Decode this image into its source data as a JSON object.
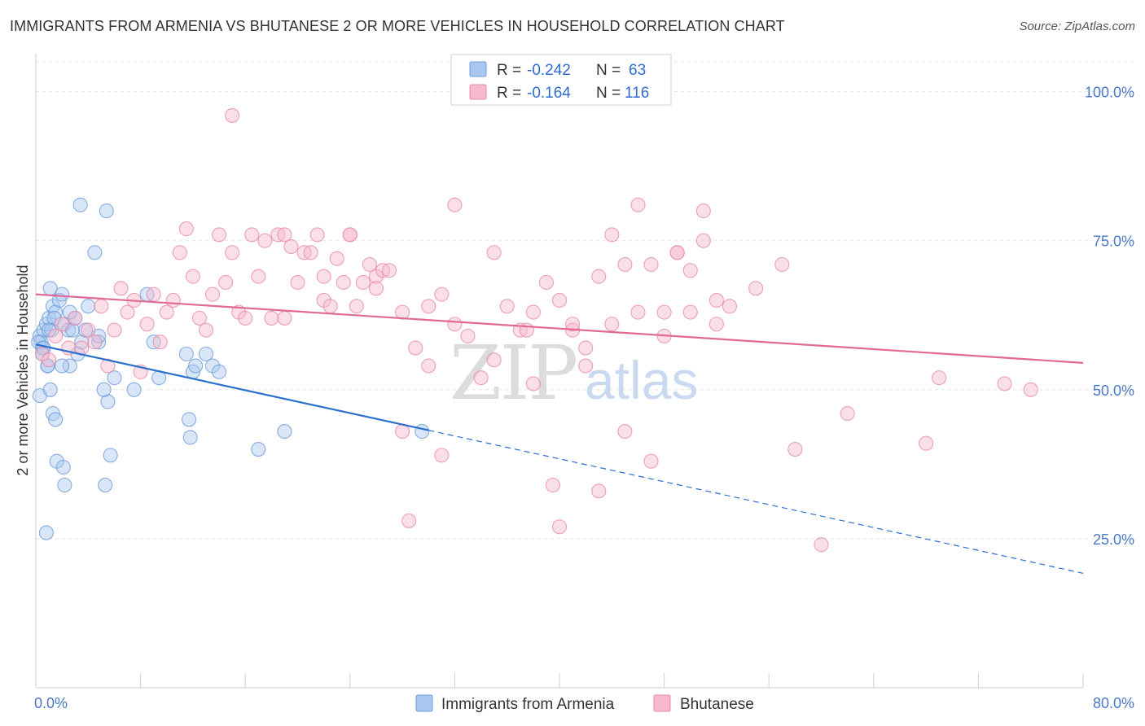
{
  "title": "IMMIGRANTS FROM ARMENIA VS BHUTANESE 2 OR MORE VEHICLES IN HOUSEHOLD CORRELATION CHART",
  "source": "Source: ZipAtlas.com",
  "watermark": {
    "zip": "ZIP",
    "atlas": "atlas"
  },
  "colors": {
    "blue_fill": "#a9c7ef",
    "blue_stroke": "#6e9bd8",
    "blue_line": "#2a6fd0",
    "pink_fill": "#f7b9cc",
    "pink_stroke": "#e88aa9",
    "pink_line": "#e06a94",
    "grid": "#e3e3e3",
    "tick_text": "#4a78c8"
  },
  "legend": {
    "rows": [
      {
        "r_label": "R =",
        "r_value": "-0.242",
        "n_label": "N =",
        "n_value": "63"
      },
      {
        "r_label": "R =",
        "r_value": "-0.164",
        "n_label": "N =",
        "n_value": "116"
      }
    ]
  },
  "chart_data": {
    "type": "scatter",
    "xlabel": "",
    "ylabel": "2 or more Vehicles in Household",
    "xlim": [
      0,
      80
    ],
    "ylim": [
      0,
      105
    ],
    "x_tick_labels": [
      {
        "value": 0,
        "label": "0.0%"
      },
      {
        "value": 80,
        "label": "80.0%"
      }
    ],
    "y_tick_labels": [
      {
        "value": 100,
        "label": "100.0%"
      },
      {
        "value": 75,
        "label": "75.0%"
      },
      {
        "value": 50,
        "label": "50.0%"
      },
      {
        "value": 25,
        "label": "25.0%"
      }
    ],
    "x_minor_ticks": [
      0,
      8,
      16,
      24,
      32,
      40,
      48,
      56,
      64,
      72,
      80
    ],
    "series": [
      {
        "name": "Immigrants from Armenia",
        "color": "blue",
        "trend": {
          "x0": 0,
          "y0": 57.6,
          "x1": 30.0,
          "y1": 43.2,
          "dash_to_x": 80,
          "dash_to_y": 19.2
        },
        "points": [
          [
            0.3,
            59
          ],
          [
            0.4,
            58
          ],
          [
            0.6,
            60
          ],
          [
            0.5,
            57
          ],
          [
            0.8,
            61
          ],
          [
            1.0,
            62
          ],
          [
            0.9,
            54
          ],
          [
            1.1,
            67
          ],
          [
            1.3,
            64
          ],
          [
            1.2,
            60
          ],
          [
            1.5,
            63
          ],
          [
            1.4,
            62
          ],
          [
            1.8,
            65
          ],
          [
            2.0,
            66
          ],
          [
            2.2,
            61
          ],
          [
            2.5,
            60
          ],
          [
            2.6,
            54
          ],
          [
            2.8,
            60
          ],
          [
            3.0,
            62
          ],
          [
            3.2,
            56
          ],
          [
            0.2,
            58
          ],
          [
            0.3,
            49
          ],
          [
            0.6,
            57
          ],
          [
            0.9,
            54
          ],
          [
            1.1,
            50
          ],
          [
            1.3,
            46
          ],
          [
            1.5,
            45
          ],
          [
            1.6,
            38
          ],
          [
            2.1,
            37
          ],
          [
            2.2,
            34
          ],
          [
            0.8,
            26
          ],
          [
            2.0,
            54
          ],
          [
            2.6,
            63
          ],
          [
            3.5,
            58
          ],
          [
            4.0,
            64
          ],
          [
            3.8,
            60
          ],
          [
            4.8,
            58
          ],
          [
            5.5,
            48
          ],
          [
            5.2,
            50
          ],
          [
            5.7,
            39
          ],
          [
            5.3,
            34
          ],
          [
            6.0,
            52
          ],
          [
            3.4,
            81
          ],
          [
            4.5,
            73
          ],
          [
            5.4,
            80
          ],
          [
            7.5,
            50
          ],
          [
            8.5,
            66
          ],
          [
            9.0,
            58
          ],
          [
            9.4,
            52
          ],
          [
            11.5,
            56
          ],
          [
            11.7,
            45
          ],
          [
            12.0,
            53
          ],
          [
            12.2,
            54
          ],
          [
            13.0,
            56
          ],
          [
            13.5,
            54
          ],
          [
            14.0,
            53
          ],
          [
            11.8,
            42
          ],
          [
            17.0,
            40
          ],
          [
            19.0,
            43
          ],
          [
            29.5,
            43
          ],
          [
            4.8,
            59
          ],
          [
            1.0,
            60
          ],
          [
            0.5,
            56
          ]
        ]
      },
      {
        "name": "Bhutanese",
        "color": "pink",
        "trend": {
          "x0": 0,
          "y0": 66.0,
          "x1": 80,
          "y1": 54.5
        },
        "points": [
          [
            0.5,
            56
          ],
          [
            1.0,
            55
          ],
          [
            1.5,
            59
          ],
          [
            2.0,
            61
          ],
          [
            2.5,
            57
          ],
          [
            3.0,
            62
          ],
          [
            3.5,
            57
          ],
          [
            4.0,
            60
          ],
          [
            4.5,
            58
          ],
          [
            5.0,
            64
          ],
          [
            5.5,
            54
          ],
          [
            6.0,
            60
          ],
          [
            6.5,
            67
          ],
          [
            7.0,
            63
          ],
          [
            7.5,
            65
          ],
          [
            8.0,
            53
          ],
          [
            8.5,
            61
          ],
          [
            9.0,
            66
          ],
          [
            9.5,
            58
          ],
          [
            10.0,
            63
          ],
          [
            10.5,
            65
          ],
          [
            11.0,
            73
          ],
          [
            11.5,
            77
          ],
          [
            12.0,
            69
          ],
          [
            12.5,
            62
          ],
          [
            13.0,
            60
          ],
          [
            13.5,
            66
          ],
          [
            14.0,
            76
          ],
          [
            14.5,
            68
          ],
          [
            15.0,
            73
          ],
          [
            15.5,
            63
          ],
          [
            16.0,
            62
          ],
          [
            16.5,
            76
          ],
          [
            17.0,
            69
          ],
          [
            17.5,
            75
          ],
          [
            18.0,
            62
          ],
          [
            18.5,
            76
          ],
          [
            19.0,
            76
          ],
          [
            19.5,
            74
          ],
          [
            20.0,
            68
          ],
          [
            20.5,
            73
          ],
          [
            21.0,
            73
          ],
          [
            21.5,
            76
          ],
          [
            22.0,
            65
          ],
          [
            22.5,
            64
          ],
          [
            23.0,
            72
          ],
          [
            23.5,
            68
          ],
          [
            24.0,
            76
          ],
          [
            24.5,
            64
          ],
          [
            25.0,
            68
          ],
          [
            25.5,
            71
          ],
          [
            26.0,
            69
          ],
          [
            26.5,
            70
          ],
          [
            27.0,
            70
          ],
          [
            28.0,
            63
          ],
          [
            29.0,
            57
          ],
          [
            30.0,
            64
          ],
          [
            31.0,
            66
          ],
          [
            32.0,
            61
          ],
          [
            33.0,
            59
          ],
          [
            34.0,
            52
          ],
          [
            35.0,
            55
          ],
          [
            36.0,
            64
          ],
          [
            37.0,
            60
          ],
          [
            38.0,
            63
          ],
          [
            39.0,
            68
          ],
          [
            40.0,
            65
          ],
          [
            41.0,
            60
          ],
          [
            42.0,
            57
          ],
          [
            43.0,
            69
          ],
          [
            44.0,
            76
          ],
          [
            45.0,
            71
          ],
          [
            46.0,
            63
          ],
          [
            47.0,
            71
          ],
          [
            48.0,
            59
          ],
          [
            49.0,
            73
          ],
          [
            50.0,
            63
          ],
          [
            51.0,
            75
          ],
          [
            52.0,
            65
          ],
          [
            53.0,
            64
          ],
          [
            15.0,
            96
          ],
          [
            19.0,
            62
          ],
          [
            22.0,
            69
          ],
          [
            24.0,
            76
          ],
          [
            26.0,
            67
          ],
          [
            28.0,
            43
          ],
          [
            28.5,
            28
          ],
          [
            30.0,
            54
          ],
          [
            31.0,
            39
          ],
          [
            32.0,
            81
          ],
          [
            35.0,
            73
          ],
          [
            37.5,
            60
          ],
          [
            38.0,
            51
          ],
          [
            39.5,
            34
          ],
          [
            40.0,
            27
          ],
          [
            41.0,
            61
          ],
          [
            42.0,
            54
          ],
          [
            43.0,
            33
          ],
          [
            44.0,
            61
          ],
          [
            45.0,
            43
          ],
          [
            46.0,
            81
          ],
          [
            47.0,
            38
          ],
          [
            48.0,
            63
          ],
          [
            49.0,
            73
          ],
          [
            50.0,
            70
          ],
          [
            51.0,
            80
          ],
          [
            52.0,
            61
          ],
          [
            55.0,
            67
          ],
          [
            57.0,
            71
          ],
          [
            58.0,
            40
          ],
          [
            60.0,
            24
          ],
          [
            62.0,
            46
          ],
          [
            68.0,
            41
          ],
          [
            69.0,
            52
          ],
          [
            74.0,
            51
          ],
          [
            76.0,
            50
          ]
        ]
      }
    ]
  },
  "bottom_legend": [
    {
      "label": "Immigrants from Armenia",
      "color": "blue"
    },
    {
      "label": "Bhutanese",
      "color": "pink"
    }
  ]
}
